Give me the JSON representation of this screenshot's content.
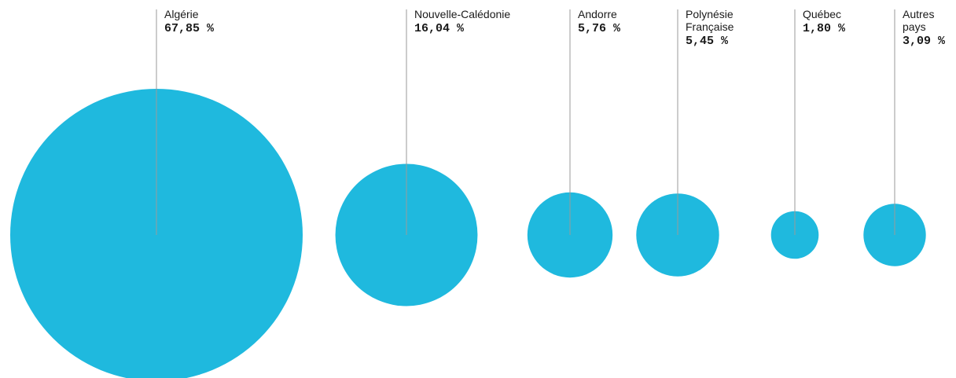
{
  "chart_data": {
    "type": "bubble",
    "bubble_color": "#1fb9de",
    "label_color": "#1a1a1a",
    "leader_color": "#9a9a9a",
    "items": [
      {
        "label_lines": [
          "Algérie"
        ],
        "value": 67.85,
        "value_text": "67,85 %"
      },
      {
        "label_lines": [
          "Nouvelle-Calédonie"
        ],
        "value": 16.04,
        "value_text": "16,04 %"
      },
      {
        "label_lines": [
          "Andorre"
        ],
        "value": 5.76,
        "value_text": "5,76 %"
      },
      {
        "label_lines": [
          "Polynésie",
          "Française"
        ],
        "value": 5.45,
        "value_text": "5,45 %"
      },
      {
        "label_lines": [
          "Québec"
        ],
        "value": 1.8,
        "value_text": "1,80 %"
      },
      {
        "label_lines": [
          "Autres",
          "pays"
        ],
        "value": 3.09,
        "value_text": "3,09 %"
      }
    ]
  }
}
